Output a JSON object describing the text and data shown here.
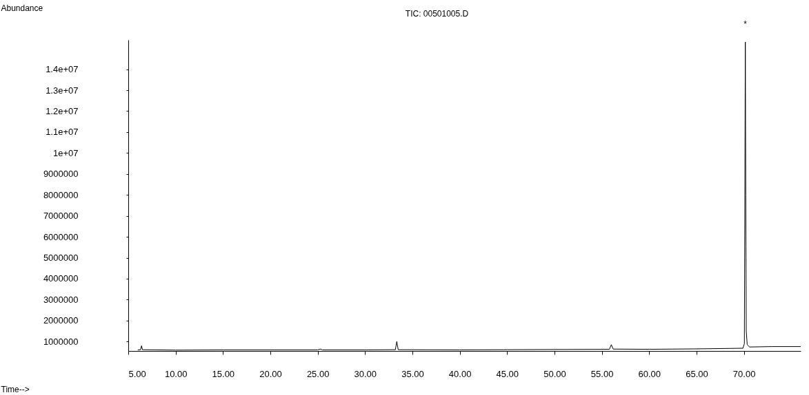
{
  "chart_data": {
    "type": "line",
    "title": "TIC: 00501005.D",
    "ylabel": "Abundance",
    "xlabel": "Time-->",
    "series": [
      {
        "color": "#000000",
        "x": [
          6.0,
          6.3,
          6.4,
          6.5,
          10,
          15,
          20,
          25,
          25.3,
          25.5,
          30,
          33.2,
          33.35,
          33.5,
          40,
          45,
          50,
          55.8,
          56.0,
          56.2,
          60,
          65,
          69.9,
          70.05,
          70.1,
          70.15,
          70.2,
          70.25,
          70.35,
          70.6,
          73,
          76
        ],
        "values": [
          600000,
          610000,
          800000,
          610000,
          590000,
          600000,
          600000,
          600000,
          640000,
          600000,
          600000,
          610000,
          1000000,
          610000,
          600000,
          610000,
          620000,
          630000,
          850000,
          640000,
          630000,
          650000,
          680000,
          900000,
          8000000,
          15300000,
          8000000,
          1500000,
          850000,
          740000,
          760000,
          760000
        ]
      }
    ],
    "xlim": [
      5,
      76
    ],
    "xticks": [
      {
        "value": 5,
        "label": "5.00"
      },
      {
        "value": 10,
        "label": "10.00"
      },
      {
        "value": 15,
        "label": "15.00"
      },
      {
        "value": 20,
        "label": "20.00"
      },
      {
        "value": 25,
        "label": "25.00"
      },
      {
        "value": 30,
        "label": "30.00"
      },
      {
        "value": 35,
        "label": "35.00"
      },
      {
        "value": 40,
        "label": "40.00"
      },
      {
        "value": 45,
        "label": "45.00"
      },
      {
        "value": 50,
        "label": "50.00"
      },
      {
        "value": 55,
        "label": "55.00"
      },
      {
        "value": 60,
        "label": "60.00"
      },
      {
        "value": 65,
        "label": "65.00"
      },
      {
        "value": 70,
        "label": "70.00"
      }
    ],
    "ylim": [
      550000,
      15400000
    ],
    "yticks": [
      1000000,
      2000000,
      3000000,
      4000000,
      5000000,
      6000000,
      7000000,
      8000000,
      9000000,
      {
        "value": 10000000,
        "label": "1e+07"
      },
      {
        "value": 11000000,
        "label": "1.1e+07"
      },
      {
        "value": 12000000,
        "label": "1.2e+07"
      },
      {
        "value": 13000000,
        "label": "1.3e+07"
      },
      {
        "value": 14000000,
        "label": "1.4e+07"
      }
    ],
    "annotations": [
      {
        "text": "*",
        "x": 70.15,
        "y": 15300000
      }
    ],
    "grid": false,
    "marker": "none",
    "line_style": "solid"
  }
}
